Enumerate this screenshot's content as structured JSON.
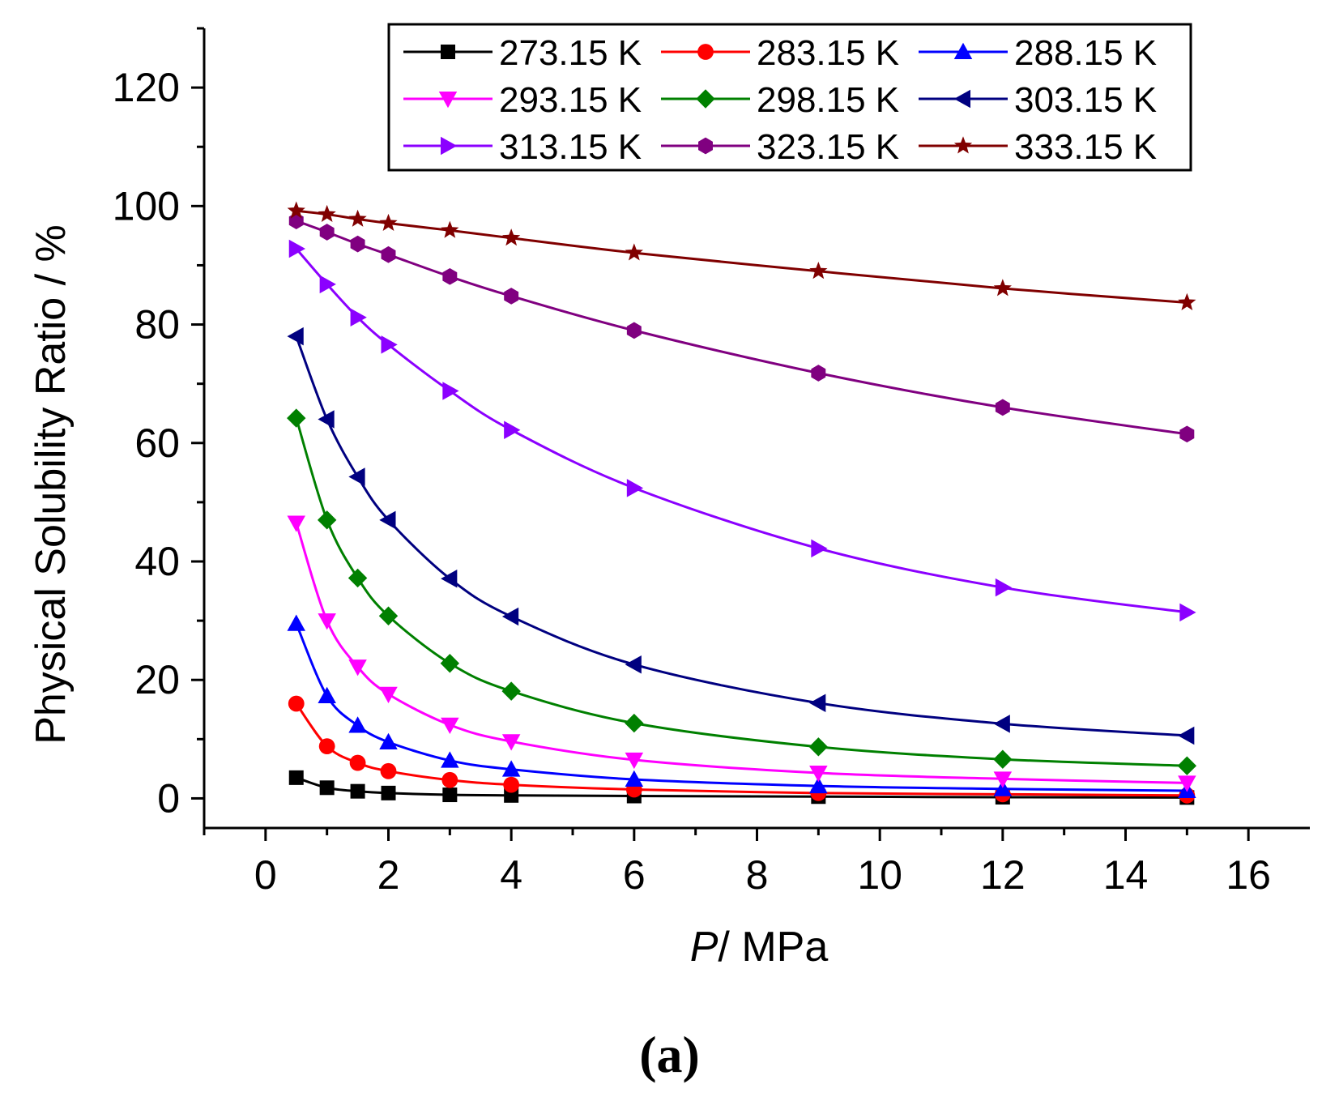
{
  "panel_label": "(a)",
  "chart_data": {
    "type": "line",
    "title": "",
    "xlabel_italic": "P",
    "xlabel_rest": "/ MPa",
    "ylabel": "Physical Solubility Ratio / %",
    "xlim": [
      -1,
      17
    ],
    "ylim": [
      -5,
      130
    ],
    "x_ticks": [
      0,
      2,
      4,
      6,
      8,
      10,
      12,
      14,
      16
    ],
    "x_tick_labels": [
      "0",
      "2",
      "4",
      "6",
      "8",
      "10",
      "12",
      "14",
      "16"
    ],
    "y_ticks": [
      0,
      20,
      40,
      60,
      80,
      100,
      120
    ],
    "y_tick_labels": [
      "0",
      "20",
      "40",
      "60",
      "80",
      "100",
      "120"
    ],
    "legend_position": "top-right",
    "x": [
      0.5,
      1,
      1.5,
      2,
      3,
      4,
      6,
      9,
      12,
      15
    ],
    "series": [
      {
        "name": "273.15 K",
        "color": "#000000",
        "marker": "square",
        "values": [
          3.5,
          1.8,
          1.2,
          0.9,
          0.6,
          0.5,
          0.4,
          0.3,
          0.2,
          0.15
        ]
      },
      {
        "name": "283.15 K",
        "color": "#ff0000",
        "marker": "circle",
        "values": [
          16.0,
          8.8,
          6.0,
          4.6,
          3.1,
          2.3,
          1.5,
          0.9,
          0.7,
          0.5
        ]
      },
      {
        "name": "288.15 K",
        "color": "#0000ff",
        "marker": "triangle-up",
        "values": [
          29.5,
          17.3,
          12.3,
          9.5,
          6.4,
          4.9,
          3.2,
          2.1,
          1.6,
          1.3
        ]
      },
      {
        "name": "293.15 K",
        "color": "#ff00ff",
        "marker": "triangle-down",
        "values": [
          46.5,
          30.0,
          22.2,
          17.6,
          12.4,
          9.6,
          6.5,
          4.3,
          3.3,
          2.6
        ]
      },
      {
        "name": "298.15 K",
        "color": "#008000",
        "marker": "diamond",
        "values": [
          64.2,
          47.0,
          37.2,
          30.8,
          22.8,
          18.1,
          12.7,
          8.7,
          6.6,
          5.5
        ]
      },
      {
        "name": "303.15 K",
        "color": "#000080",
        "marker": "triangle-left",
        "values": [
          78.0,
          64.0,
          54.3,
          47.0,
          37.1,
          30.7,
          22.6,
          16.1,
          12.6,
          10.6
        ]
      },
      {
        "name": "313.15 K",
        "color": "#8b00ff",
        "marker": "triangle-right",
        "values": [
          92.8,
          86.8,
          81.2,
          76.6,
          68.8,
          62.2,
          52.4,
          42.2,
          35.6,
          31.4
        ]
      },
      {
        "name": "323.15 K",
        "color": "#800080",
        "marker": "hexagon",
        "values": [
          97.5,
          95.6,
          93.6,
          91.8,
          88.1,
          84.8,
          79.0,
          71.8,
          66.0,
          61.5
        ]
      },
      {
        "name": "333.15 K",
        "color": "#800000",
        "marker": "star",
        "values": [
          99.2,
          98.6,
          97.8,
          97.1,
          95.9,
          94.6,
          92.1,
          89.0,
          86.1,
          83.7
        ]
      }
    ]
  }
}
